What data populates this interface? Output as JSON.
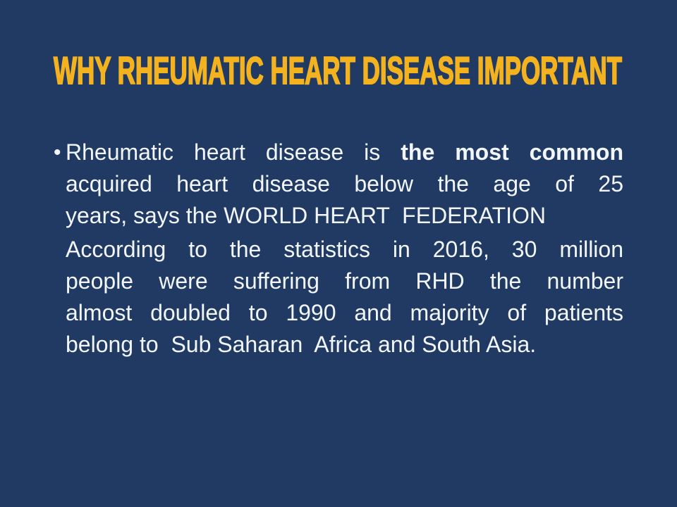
{
  "slide": {
    "title": "WHY RHEUMATIC HEART DISEASE IMPORTANT",
    "bullet_glyph": "•",
    "colors": {
      "background": "#203A63",
      "title": "#F4B21E",
      "body_text": "#F2F6FA"
    },
    "paragraph1": {
      "line1_normal": "Rheumatic heart disease is ",
      "line1_bold": "the most common",
      "line2": "acquired heart disease below the age of 25",
      "line3": "years, says the WORLD HEART  FEDERATION"
    },
    "paragraph2": {
      "line1": "According to the statistics in 2016, 30 million",
      "line2": "people were suffering from RHD the number",
      "line3": "almost doubled to 1990 and majority of patients",
      "line4": "belong to  Sub Saharan  Africa and South Asia."
    }
  }
}
